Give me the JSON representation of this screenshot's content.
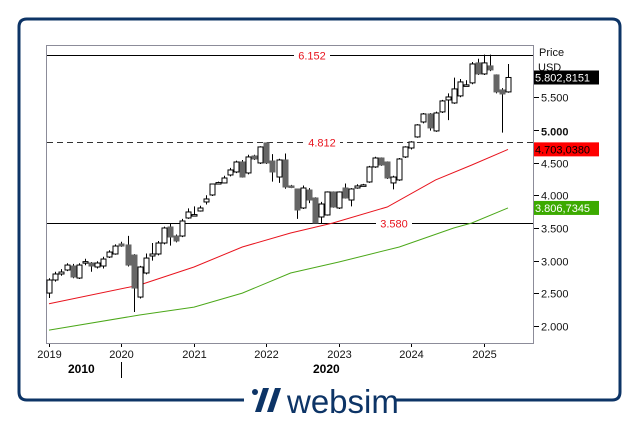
{
  "brand": {
    "name": "websim",
    "color": "#0d3466"
  },
  "chart_data": {
    "type": "candlestick",
    "axis": {
      "title": "Price",
      "unit": "USD",
      "ylim": [
        1740,
        6300
      ],
      "grid": false,
      "y_ticks": [
        {
          "value": 5500,
          "label": "5.500"
        },
        {
          "value": 5000,
          "label": "5.000",
          "bold": true
        },
        {
          "value": 4500,
          "label": "4.500"
        },
        {
          "value": 4000,
          "label": "4.000"
        },
        {
          "value": 3500,
          "label": "3.500"
        },
        {
          "value": 3000,
          "label": "3.000"
        },
        {
          "value": 2500,
          "label": "2.500"
        },
        {
          "value": 2000,
          "label": "2.000"
        }
      ],
      "x_ticks": [
        {
          "date": "2019-01",
          "label": "2019"
        },
        {
          "date": "2020-01",
          "label": "2020"
        },
        {
          "date": "2021-01",
          "label": "2021"
        },
        {
          "date": "2022-01",
          "label": "2022"
        },
        {
          "date": "2023-01",
          "label": "2023"
        },
        {
          "date": "2024-01",
          "label": "2024"
        },
        {
          "date": "2025-01",
          "label": "2025"
        }
      ],
      "decade_labels": [
        {
          "label": "2010"
        },
        {
          "label": "2020"
        }
      ]
    },
    "levels": [
      {
        "value": 6152,
        "label": "6.152",
        "style": "solid"
      },
      {
        "value": 4812,
        "label": "4.812",
        "style": "dashed"
      },
      {
        "value": 3580,
        "label": "3.580",
        "style": "solid"
      }
    ],
    "badges": [
      {
        "value": 5802.8151,
        "label": "5.802,8151",
        "bg": "#000000",
        "fg": "#ffffff"
      },
      {
        "value": 4703.038,
        "label": "4.703,0380",
        "bg": "#ff0000",
        "fg": "#000000"
      },
      {
        "value": 3806.7345,
        "label": "3.806,7345",
        "bg": "#3caa00",
        "fg": "#ffffff"
      }
    ],
    "colors": {
      "up": "#ffffff",
      "down": "#666666",
      "ma_red": "#e8141e",
      "ma_green": "#4ca81a",
      "level_label": "#e8141e"
    },
    "candles": [
      [
        "2019-01",
        2504,
        2730,
        2428,
        2704
      ],
      [
        "2019-02",
        2704,
        2830,
        2680,
        2796
      ],
      [
        "2019-03",
        2796,
        2870,
        2770,
        2826
      ],
      [
        "2019-04",
        2857,
        2960,
        2840,
        2933
      ],
      [
        "2019-05",
        2918,
        2950,
        2730,
        2750
      ],
      [
        "2019-06",
        2734,
        2960,
        2720,
        2933
      ],
      [
        "2019-07",
        2975,
        3030,
        2930,
        2985
      ],
      [
        "2019-08",
        2964,
        2980,
        2830,
        2918
      ],
      [
        "2019-09",
        2903,
        2990,
        2880,
        2964
      ],
      [
        "2019-10",
        2918,
        3060,
        2880,
        3025
      ],
      [
        "2019-11",
        3056,
        3160,
        3040,
        3132
      ],
      [
        "2019-12",
        3102,
        3250,
        3090,
        3224
      ],
      [
        "2020-01",
        3255,
        3290,
        3210,
        3224
      ],
      [
        "2020-02",
        3240,
        3380,
        2910,
        2933
      ],
      [
        "2020-03",
        3086,
        3100,
        2214,
        2581
      ],
      [
        "2020-04",
        2443,
        2920,
        2420,
        2903
      ],
      [
        "2020-05",
        2811,
        3110,
        2790,
        3040
      ],
      [
        "2020-06",
        3071,
        3270,
        3000,
        3102
      ],
      [
        "2020-07",
        3102,
        3300,
        3080,
        3270
      ],
      [
        "2020-08",
        3270,
        3520,
        3250,
        3500
      ],
      [
        "2020-09",
        3515,
        3560,
        3230,
        3362
      ],
      [
        "2020-10",
        3377,
        3400,
        3280,
        3301
      ],
      [
        "2020-11",
        3377,
        3640,
        3360,
        3607
      ],
      [
        "2020-12",
        3653,
        3800,
        3640,
        3745
      ],
      [
        "2021-01",
        3690,
        3830,
        3690,
        3705
      ],
      [
        "2021-02",
        3760,
        3840,
        3750,
        3806
      ],
      [
        "2021-03",
        3898,
        4000,
        3860,
        3944
      ],
      [
        "2021-04",
        4005,
        4180,
        3990,
        4173
      ],
      [
        "2021-05",
        4180,
        4210,
        4170,
        4195
      ],
      [
        "2021-06",
        4189,
        4300,
        4180,
        4265
      ],
      [
        "2021-07",
        4311,
        4420,
        4290,
        4388
      ],
      [
        "2021-08",
        4357,
        4530,
        4340,
        4510
      ],
      [
        "2021-09",
        4510,
        4540,
        4270,
        4280
      ],
      [
        "2021-10",
        4342,
        4620,
        4320,
        4587
      ],
      [
        "2021-11",
        4602,
        4620,
        4540,
        4556
      ],
      [
        "2021-12",
        4495,
        4750,
        4480,
        4740
      ],
      [
        "2022-01",
        4801,
        4810,
        4480,
        4495
      ],
      [
        "2022-02",
        4525,
        4630,
        4210,
        4357
      ],
      [
        "2022-03",
        4280,
        4560,
        4190,
        4541
      ],
      [
        "2022-04",
        4541,
        4640,
        4100,
        4127
      ],
      [
        "2022-05",
        4143,
        4160,
        4110,
        4127
      ],
      [
        "2022-06",
        4097,
        4100,
        3640,
        3775
      ],
      [
        "2022-07",
        3806,
        4150,
        3790,
        4112
      ],
      [
        "2022-08",
        4081,
        4110,
        3880,
        3928
      ],
      [
        "2022-09",
        3959,
        3970,
        3560,
        3576
      ],
      [
        "2022-10",
        3668,
        3900,
        3570,
        3867
      ],
      [
        "2022-11",
        3699,
        4060,
        3690,
        4051
      ],
      [
        "2022-12",
        4051,
        4060,
        3810,
        3821
      ],
      [
        "2023-01",
        3806,
        4060,
        3790,
        4051
      ],
      [
        "2023-02",
        4112,
        4180,
        3950,
        3959
      ],
      [
        "2023-03",
        3928,
        4110,
        3830,
        4097
      ],
      [
        "2023-04",
        4112,
        4170,
        4100,
        4143
      ],
      [
        "2023-05",
        4150,
        4175,
        4140,
        4160
      ],
      [
        "2023-06",
        4204,
        4450,
        4190,
        4434
      ],
      [
        "2023-07",
        4434,
        4590,
        4420,
        4571
      ],
      [
        "2023-08",
        4571,
        4580,
        4450,
        4464
      ],
      [
        "2023-09",
        4510,
        4520,
        4250,
        4265
      ],
      [
        "2023-10",
        4189,
        4300,
        4090,
        4280
      ],
      [
        "2023-11",
        4235,
        4570,
        4220,
        4556
      ],
      [
        "2023-12",
        4587,
        4750,
        4570,
        4740
      ],
      [
        "2024-01",
        4724,
        4830,
        4700,
        4816
      ],
      [
        "2024-02",
        4893,
        5090,
        4880,
        5077
      ],
      [
        "2024-03",
        5122,
        5260,
        5100,
        5245
      ],
      [
        "2024-04",
        5245,
        5260,
        4990,
        5031
      ],
      [
        "2024-05",
        4985,
        5280,
        4970,
        5260
      ],
      [
        "2024-06",
        5276,
        5460,
        5260,
        5444
      ],
      [
        "2024-07",
        5459,
        5560,
        5150,
        5505
      ],
      [
        "2024-08",
        5413,
        5800,
        5400,
        5628
      ],
      [
        "2024-09",
        5521,
        5780,
        5500,
        5735
      ],
      [
        "2024-10",
        5680,
        5760,
        5670,
        5690
      ],
      [
        "2024-11",
        5720,
        6040,
        5700,
        6010
      ],
      [
        "2024-12",
        6026,
        6090,
        5840,
        5857
      ],
      [
        "2025-01",
        5857,
        6152,
        5840,
        6026
      ],
      [
        "2025-02",
        5980,
        6152,
        5900,
        5919
      ],
      [
        "2025-03",
        5842,
        5850,
        5560,
        5582
      ],
      [
        "2025-04",
        5612,
        5640,
        4960,
        5551
      ],
      [
        "2025-05",
        5582,
        6010,
        5570,
        5803
      ]
    ],
    "ma_red": [
      [
        "2019-01",
        2340
      ],
      [
        "2020-04",
        2627
      ],
      [
        "2021-01",
        2903
      ],
      [
        "2021-09",
        3209
      ],
      [
        "2022-05",
        3423
      ],
      [
        "2022-12",
        3576
      ],
      [
        "2023-09",
        3821
      ],
      [
        "2024-05",
        4235
      ],
      [
        "2024-11",
        4464
      ],
      [
        "2025-05",
        4703
      ]
    ],
    "ma_green": [
      [
        "2019-01",
        1938
      ],
      [
        "2020-04",
        2168
      ],
      [
        "2021-01",
        2290
      ],
      [
        "2021-09",
        2504
      ],
      [
        "2022-05",
        2811
      ],
      [
        "2023-01",
        2979
      ],
      [
        "2023-11",
        3209
      ],
      [
        "2024-08",
        3500
      ],
      [
        "2024-11",
        3576
      ],
      [
        "2025-05",
        3807
      ]
    ]
  }
}
